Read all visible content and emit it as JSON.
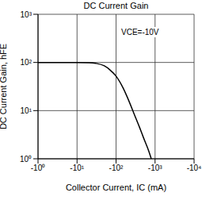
{
  "chart_data": {
    "type": "line",
    "title": "DC Current Gain",
    "annotation": "VCE=-10V",
    "x_label": "Collector Current, IC (mA)",
    "y_label": "DC Current Gain, hFE",
    "log": true,
    "grid": true,
    "color": "#000000",
    "xlim": [
      -1,
      -10000
    ],
    "xticks": [
      {
        "value": -1,
        "label": "-10⁰"
      },
      {
        "value": -10,
        "label": "-10¹"
      },
      {
        "value": -100,
        "label": "-10²"
      },
      {
        "value": -1000,
        "label": "-10³"
      },
      {
        "value": -10000,
        "label": "-10⁴"
      }
    ],
    "ylim": [
      1,
      1000
    ],
    "yticks": [
      {
        "value": 1,
        "label": "10⁰"
      },
      {
        "value": 10,
        "label": "10¹"
      },
      {
        "value": 100,
        "label": "10²"
      },
      {
        "value": 1000,
        "label": "10³"
      }
    ],
    "x": [
      -1,
      -10,
      -20,
      -30,
      -50,
      -70,
      -100,
      -150,
      -200,
      -300,
      -400,
      -500,
      -700,
      -800
    ],
    "values": [
      100,
      100,
      99,
      96,
      85,
      70,
      52,
      30,
      18,
      8,
      4.5,
      2.8,
      1.4,
      1
    ]
  }
}
